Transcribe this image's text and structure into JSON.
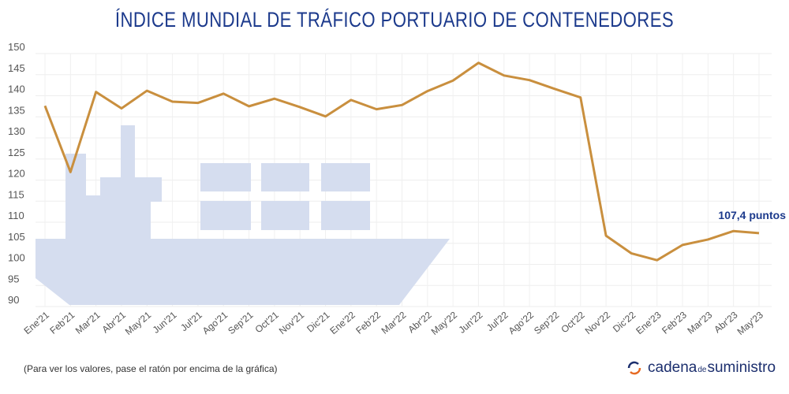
{
  "chart_data": {
    "type": "line",
    "title": "ÍNDICE MUNDIAL DE TRÁFICO PORTUARIO DE CONTENEDORES",
    "categories": [
      "Ene'21",
      "Feb'21",
      "Mar'21",
      "Abr'21",
      "May'21",
      "Jun'21",
      "Jul'21",
      "Ago'21",
      "Sep'21",
      "Oct'21",
      "Nov'21",
      "Dic'21",
      "Ene'22",
      "Feb'22",
      "Mar'22",
      "Abr'22",
      "May'22",
      "Jun'22",
      "Jul'22",
      "Ago'22",
      "Sep'22",
      "Oct'22",
      "Nov'22",
      "Dic'22",
      "Ene'23",
      "Feb'23",
      "Mar'23",
      "Abr'23",
      "May'23"
    ],
    "values": [
      137.6,
      121.9,
      140.9,
      137.0,
      141.2,
      138.6,
      138.3,
      140.5,
      137.5,
      139.3,
      137.3,
      135.1,
      139.0,
      136.8,
      137.8,
      141.1,
      143.6,
      147.8,
      144.8,
      143.7,
      141.6,
      139.6,
      106.8,
      102.6,
      101.0,
      104.6,
      105.9,
      107.9,
      107.4
    ],
    "yticks": [
      90,
      95,
      100,
      105,
      110,
      115,
      120,
      125,
      130,
      135,
      140,
      145,
      150
    ],
    "ylim": [
      90,
      150
    ],
    "grid": true,
    "line_color": "#c98f3e",
    "annotation": "107,4 puntos",
    "annotation_color": "#1c3a8c",
    "background_graphic": "container-ship-silhouette",
    "background_color": "#d5ddef"
  },
  "footer": {
    "note": "(Para ver los valores, pase el ratón por encima de la gráfica)",
    "logo": {
      "part1": "cadena",
      "part2": "de",
      "part3": "suministro"
    }
  }
}
